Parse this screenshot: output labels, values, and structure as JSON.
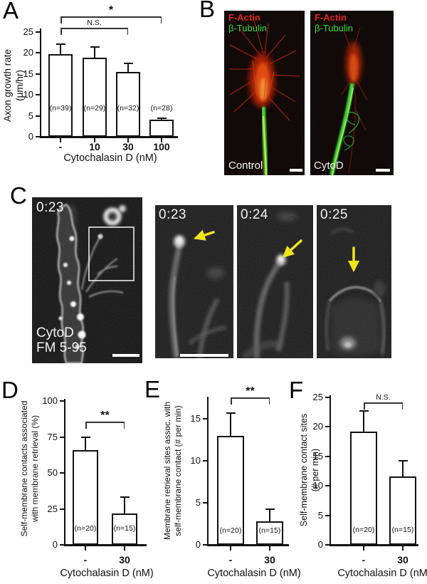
{
  "panels": {
    "A": {
      "letter": "A"
    },
    "B": {
      "letter": "B",
      "images": [
        {
          "stain_red": "F-Actin",
          "stain_green": "β-Tubulin",
          "caption": "Control"
        },
        {
          "stain_red": "F-Actin",
          "stain_green": "β-Tubulin",
          "caption": "CytoD"
        }
      ]
    },
    "C": {
      "letter": "C",
      "main": {
        "timestamp": "0:23",
        "label_line1": "CytoD",
        "label_line2": "FM 5-95"
      },
      "zooms": [
        {
          "timestamp": "0:23"
        },
        {
          "timestamp": "0:24"
        },
        {
          "timestamp": "0:25"
        }
      ]
    },
    "D": {
      "letter": "D"
    },
    "E": {
      "letter": "E"
    },
    "F": {
      "letter": "F"
    }
  },
  "colors": {
    "factin_red": "#e02318",
    "tubulin_green": "#3bdc3b",
    "arrow_yellow": "#f2e41c",
    "scale_bar_white": "#ffffff",
    "axis_black": "#111111",
    "bar_fill": "#ffffff"
  },
  "chart_data": [
    {
      "panel": "A",
      "type": "bar",
      "categories": [
        "-",
        "10",
        "30",
        "100"
      ],
      "values": [
        19.6,
        18.8,
        15.4,
        4.0
      ],
      "errors_plus": [
        2.4,
        2.6,
        2.0,
        0.4
      ],
      "bar_labels": [
        "(n=39)",
        "(n=29)",
        "(n=32)",
        "(n=28)"
      ],
      "ylabel_lines": [
        "Axon growth rate",
        "(µm/hr)"
      ],
      "xlabel": "Cytochalasin D (nM)",
      "ylim": [
        0,
        25
      ],
      "yticks": [
        0,
        5,
        10,
        15,
        20,
        25
      ],
      "grid": false,
      "brackets": [
        {
          "from": 0,
          "to": 3,
          "label": "*"
        },
        {
          "from": 0,
          "to": 2,
          "label": "N.S."
        }
      ]
    },
    {
      "panel": "D",
      "type": "bar",
      "categories": [
        "-",
        "30"
      ],
      "values": [
        66,
        22
      ],
      "errors_plus": [
        9,
        11
      ],
      "bar_labels": [
        "(n=20)",
        "(n=15)"
      ],
      "ylabel_lines": [
        "Self-membrane contacts associated",
        "with membrane retrieval (%)"
      ],
      "xlabel": "Cytochalasin D  (nM)",
      "ylim": [
        0,
        100
      ],
      "yticks": [
        0,
        25,
        50,
        75,
        100
      ],
      "grid": false,
      "brackets": [
        {
          "from": 0,
          "to": 1,
          "label": "**"
        }
      ]
    },
    {
      "panel": "E",
      "type": "bar",
      "categories": [
        "-",
        "30"
      ],
      "values": [
        13,
        2.8
      ],
      "errors_plus": [
        2.7,
        1.4
      ],
      "bar_labels": [
        "(n=20)",
        "(n=15)"
      ],
      "ylabel_lines": [
        "Membrane retrieval sites assoc. with",
        "self-membrane contact (# per min)"
      ],
      "xlabel": "Cytochalasin D  (nM)",
      "ylim": [
        0,
        17.5
      ],
      "yticks": [
        0,
        5,
        10,
        15
      ],
      "grid": false,
      "brackets": [
        {
          "from": 0,
          "to": 1,
          "label": "**"
        }
      ]
    },
    {
      "panel": "F",
      "type": "bar",
      "categories": [
        "-",
        "30"
      ],
      "values": [
        19.2,
        11.6
      ],
      "errors_plus": [
        3.5,
        2.7
      ],
      "bar_labels": [
        "(n=20)",
        "(n=15)"
      ],
      "ylabel_lines": [
        "Self-membrane contact sites",
        "(# per min)"
      ],
      "xlabel": "Cytochalasin D  (nM)",
      "ylim": [
        0,
        25
      ],
      "yticks": [
        0,
        5,
        10,
        15,
        20,
        25
      ],
      "grid": false,
      "brackets": [
        {
          "from": 0,
          "to": 1,
          "label": "N.S."
        }
      ]
    }
  ]
}
